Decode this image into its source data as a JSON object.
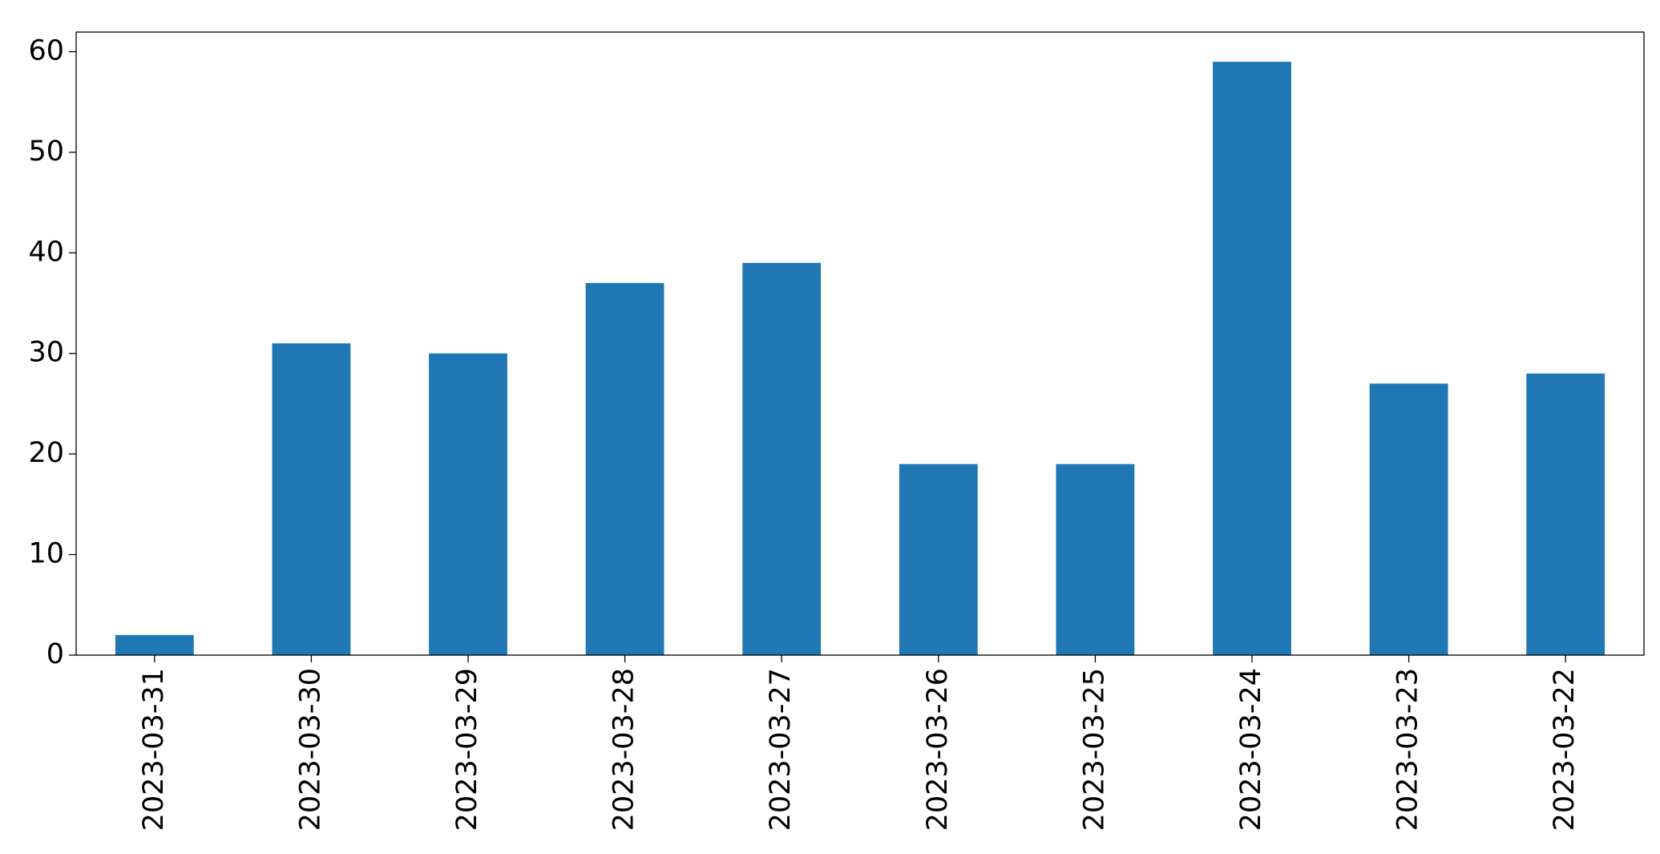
{
  "chart_data": {
    "type": "bar",
    "categories": [
      "2023-03-31",
      "2023-03-30",
      "2023-03-29",
      "2023-03-28",
      "2023-03-27",
      "2023-03-26",
      "2023-03-25",
      "2023-03-24",
      "2023-03-23",
      "2023-03-22"
    ],
    "values": [
      2,
      31,
      30,
      37,
      39,
      19,
      19,
      59,
      27,
      28
    ],
    "color": "#1f77b4",
    "ylim": [
      0,
      61.95
    ],
    "yticks": [
      0,
      10,
      20,
      30,
      40,
      50,
      60
    ],
    "grid": false
  }
}
